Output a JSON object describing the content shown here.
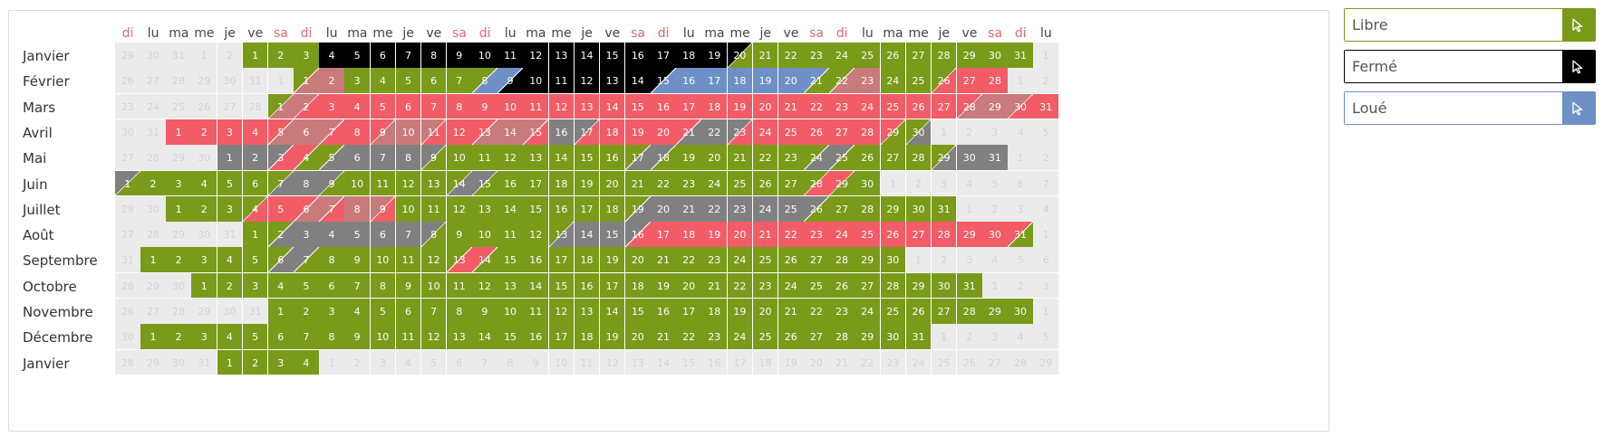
{
  "colors": {
    "libre": "#7a9a1a",
    "ferme": "#000000",
    "loue": "#6f8fc7",
    "rouge": "#f25c66",
    "gris": "#808080",
    "mauve": "#c97a7a",
    "empty": "#ebebeb"
  },
  "legend": [
    {
      "key": "libre",
      "label": "Libre",
      "color": "#7a9a1a",
      "icon": "cursor-arrow-icon"
    },
    {
      "key": "ferme",
      "label": "Fermé",
      "color": "#000000",
      "icon": "cursor-arrow-icon"
    },
    {
      "key": "loue",
      "label": "Loué",
      "color": "#6f8fc7",
      "icon": "cursor-arrow-icon"
    }
  ],
  "day_headers": [
    "di",
    "lu",
    "ma",
    "me",
    "je",
    "ve",
    "sa",
    "di",
    "lu",
    "ma",
    "me",
    "je",
    "ve",
    "sa",
    "di",
    "lu",
    "ma",
    "me",
    "je",
    "ve",
    "sa",
    "di",
    "lu",
    "ma",
    "me",
    "je",
    "ve",
    "sa",
    "di",
    "lu",
    "ma",
    "me",
    "je",
    "ve",
    "sa",
    "di",
    "lu"
  ],
  "rows": [
    {
      "month": "Janvier",
      "start": 5,
      "days": 31,
      "lead": [
        29,
        30,
        31,
        1,
        2
      ],
      "segs": "B4-19 A20 L21-31"
    },
    {
      "month": "Février",
      "start": 8,
      "days": 28,
      "lead": [
        26,
        27,
        28,
        29,
        30,
        31,
        1
      ],
      "segs": "LM1 M2 L3-7 LU8 UB9 B10-14 BU15 U16-20 UL21 LM22 M23 L24-25 LR26 R27-28"
    },
    {
      "month": "Mars",
      "start": 7,
      "days": 31,
      "lead": [
        23,
        24,
        25,
        26,
        27,
        28
      ],
      "segs": "LM1 MR2 R3-27 RM28 M29 MR30 R31"
    },
    {
      "month": "Avril",
      "start": 3,
      "days": 30,
      "lead": [
        30,
        31
      ],
      "segs": "R1-4 RM5 M6 MR7 R8 RM9 M10 MR11 R12 RM13 M14 MR15 G16 GR17 R18-20 RG21 G22 GR23 R24-28 RL29 LG30"
    },
    {
      "month": "Mai",
      "start": 5,
      "days": 31,
      "lead": [
        27,
        28,
        29,
        30
      ],
      "segs": "G1-2 GR3 RL4 LG5 G6-8 GL9 L10-16 LG17 GL18 L19-23 LG24 GL25 L26-28 LG29 G30-31"
    },
    {
      "month": "Juin",
      "start": 1,
      "days": 30,
      "lead": [],
      "segs": "GL1 L2-6 LG7 G8 GL9 L10-13 LG14 GL15 L16-27 LR28 RL29 L30"
    },
    {
      "month": "Juillet",
      "start": 3,
      "days": 31,
      "lead": [
        29,
        30
      ],
      "segs": "L1-3 LR4 R5 RM6 MR7 M8 MR9 L10-18 LG19 G20-25 GL26 L27-31"
    },
    {
      "month": "Août",
      "start": 6,
      "days": 31,
      "lead": [
        27,
        28,
        29,
        30,
        31
      ],
      "segs": "L1 LG2 G3-7 GL8 L9-12 LG13 G14-15 GR16 R17-30 RL31"
    },
    {
      "month": "Septembre",
      "start": 2,
      "days": 30,
      "lead": [
        31
      ],
      "segs": "L1-5 LG6 GL7 L8-12 LR13 RL14 L15-30"
    },
    {
      "month": "Octobre",
      "start": 4,
      "days": 31,
      "lead": [
        28,
        29,
        30
      ],
      "segs": "L1-31"
    },
    {
      "month": "Novembre",
      "start": 7,
      "days": 30,
      "lead": [
        26,
        27,
        28,
        29,
        30,
        31
      ],
      "segs": "L1-30"
    },
    {
      "month": "Décembre",
      "start": 2,
      "days": 31,
      "lead": [
        30
      ],
      "segs": "L1-31"
    },
    {
      "month": "Janvier",
      "start": 5,
      "days": 4,
      "lead": [
        28,
        29,
        30,
        31
      ],
      "segs": "L1-4"
    }
  ]
}
